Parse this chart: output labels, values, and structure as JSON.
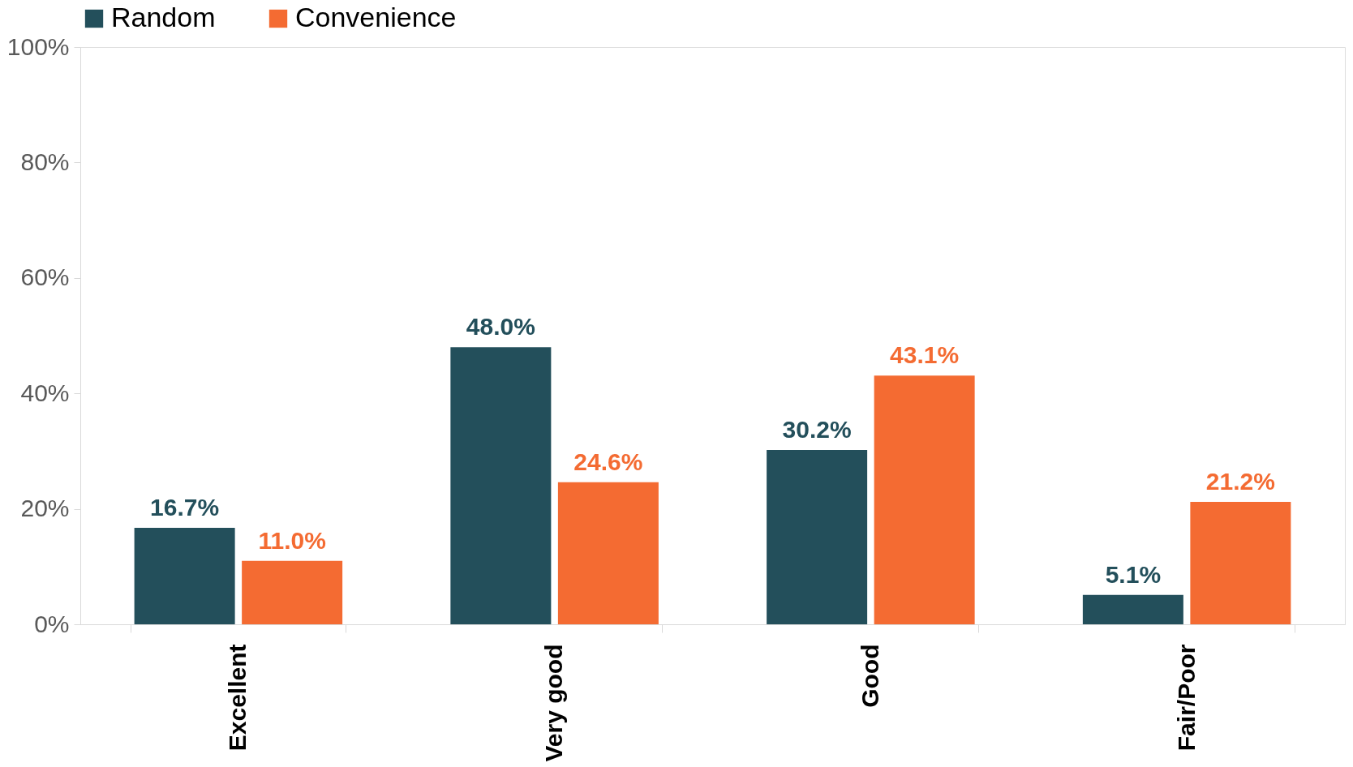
{
  "chart_data": {
    "type": "bar",
    "categories": [
      "Excellent",
      "Very good",
      "Good",
      "Fair/Poor"
    ],
    "series": [
      {
        "name": "Random",
        "color": "#234f5b",
        "values": [
          16.7,
          48.0,
          30.2,
          5.1
        ],
        "value_labels": [
          "16.7%",
          "48.0%",
          "30.2%",
          "5.1%"
        ]
      },
      {
        "name": "Convenience",
        "color": "#f46b32",
        "values": [
          11.0,
          24.6,
          43.1,
          21.2
        ],
        "value_labels": [
          "11.0%",
          "24.6%",
          "43.1%",
          "21.2%"
        ]
      }
    ],
    "ylim": [
      0,
      100
    ],
    "yticks": [
      {
        "value": 0,
        "label": "0%"
      },
      {
        "value": 20,
        "label": "20%"
      },
      {
        "value": 40,
        "label": "40%"
      },
      {
        "value": 60,
        "label": "60%"
      },
      {
        "value": 80,
        "label": "80%"
      },
      {
        "value": 100,
        "label": "100%"
      }
    ],
    "grid": false,
    "legend": "top"
  }
}
